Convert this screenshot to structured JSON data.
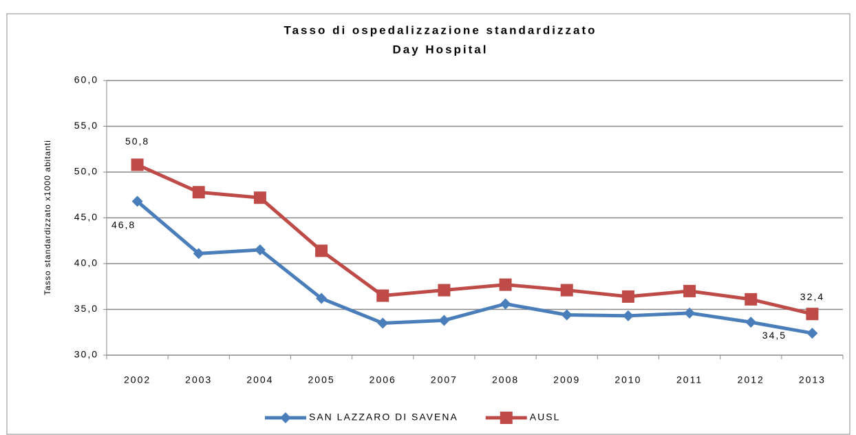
{
  "chart_data": {
    "type": "line",
    "title": "Tasso di ospedalizzazione standardizzato",
    "subtitle": "Day Hospital",
    "y_label": "Tasso standardizzato x1000 abitanti",
    "categories": [
      "2002",
      "2003",
      "2004",
      "2005",
      "2006",
      "2007",
      "2008",
      "2009",
      "2010",
      "2011",
      "2012",
      "2013"
    ],
    "series": [
      {
        "name": "SAN LAZZARO DI SAVENA",
        "color": "#4a7ebb",
        "marker": "diamond",
        "values": [
          46.8,
          41.1,
          41.5,
          36.2,
          33.5,
          33.8,
          35.6,
          34.4,
          34.3,
          34.6,
          33.6,
          32.4
        ],
        "value_labels": [
          "46,8",
          null,
          null,
          null,
          null,
          null,
          null,
          null,
          null,
          null,
          null,
          "32,4"
        ]
      },
      {
        "name": "AUSL",
        "color": "#be4b48",
        "marker": "square",
        "values": [
          50.8,
          47.8,
          47.2,
          41.4,
          36.5,
          37.1,
          37.7,
          37.1,
          36.4,
          37.0,
          36.1,
          34.5
        ],
        "value_labels": [
          "50,8",
          null,
          null,
          null,
          null,
          null,
          null,
          null,
          null,
          null,
          null,
          "34,5"
        ]
      }
    ],
    "ylim": [
      30,
      60
    ],
    "yticks": [
      {
        "value": 30,
        "label": "30,0"
      },
      {
        "value": 35,
        "label": "35,0"
      },
      {
        "value": 40,
        "label": "40,0"
      },
      {
        "value": 45,
        "label": "45,0"
      },
      {
        "value": 50,
        "label": "50,0"
      },
      {
        "value": 55,
        "label": "55,0"
      },
      {
        "value": 60,
        "label": "60,0"
      }
    ],
    "grid": true,
    "legend": "bottom"
  }
}
